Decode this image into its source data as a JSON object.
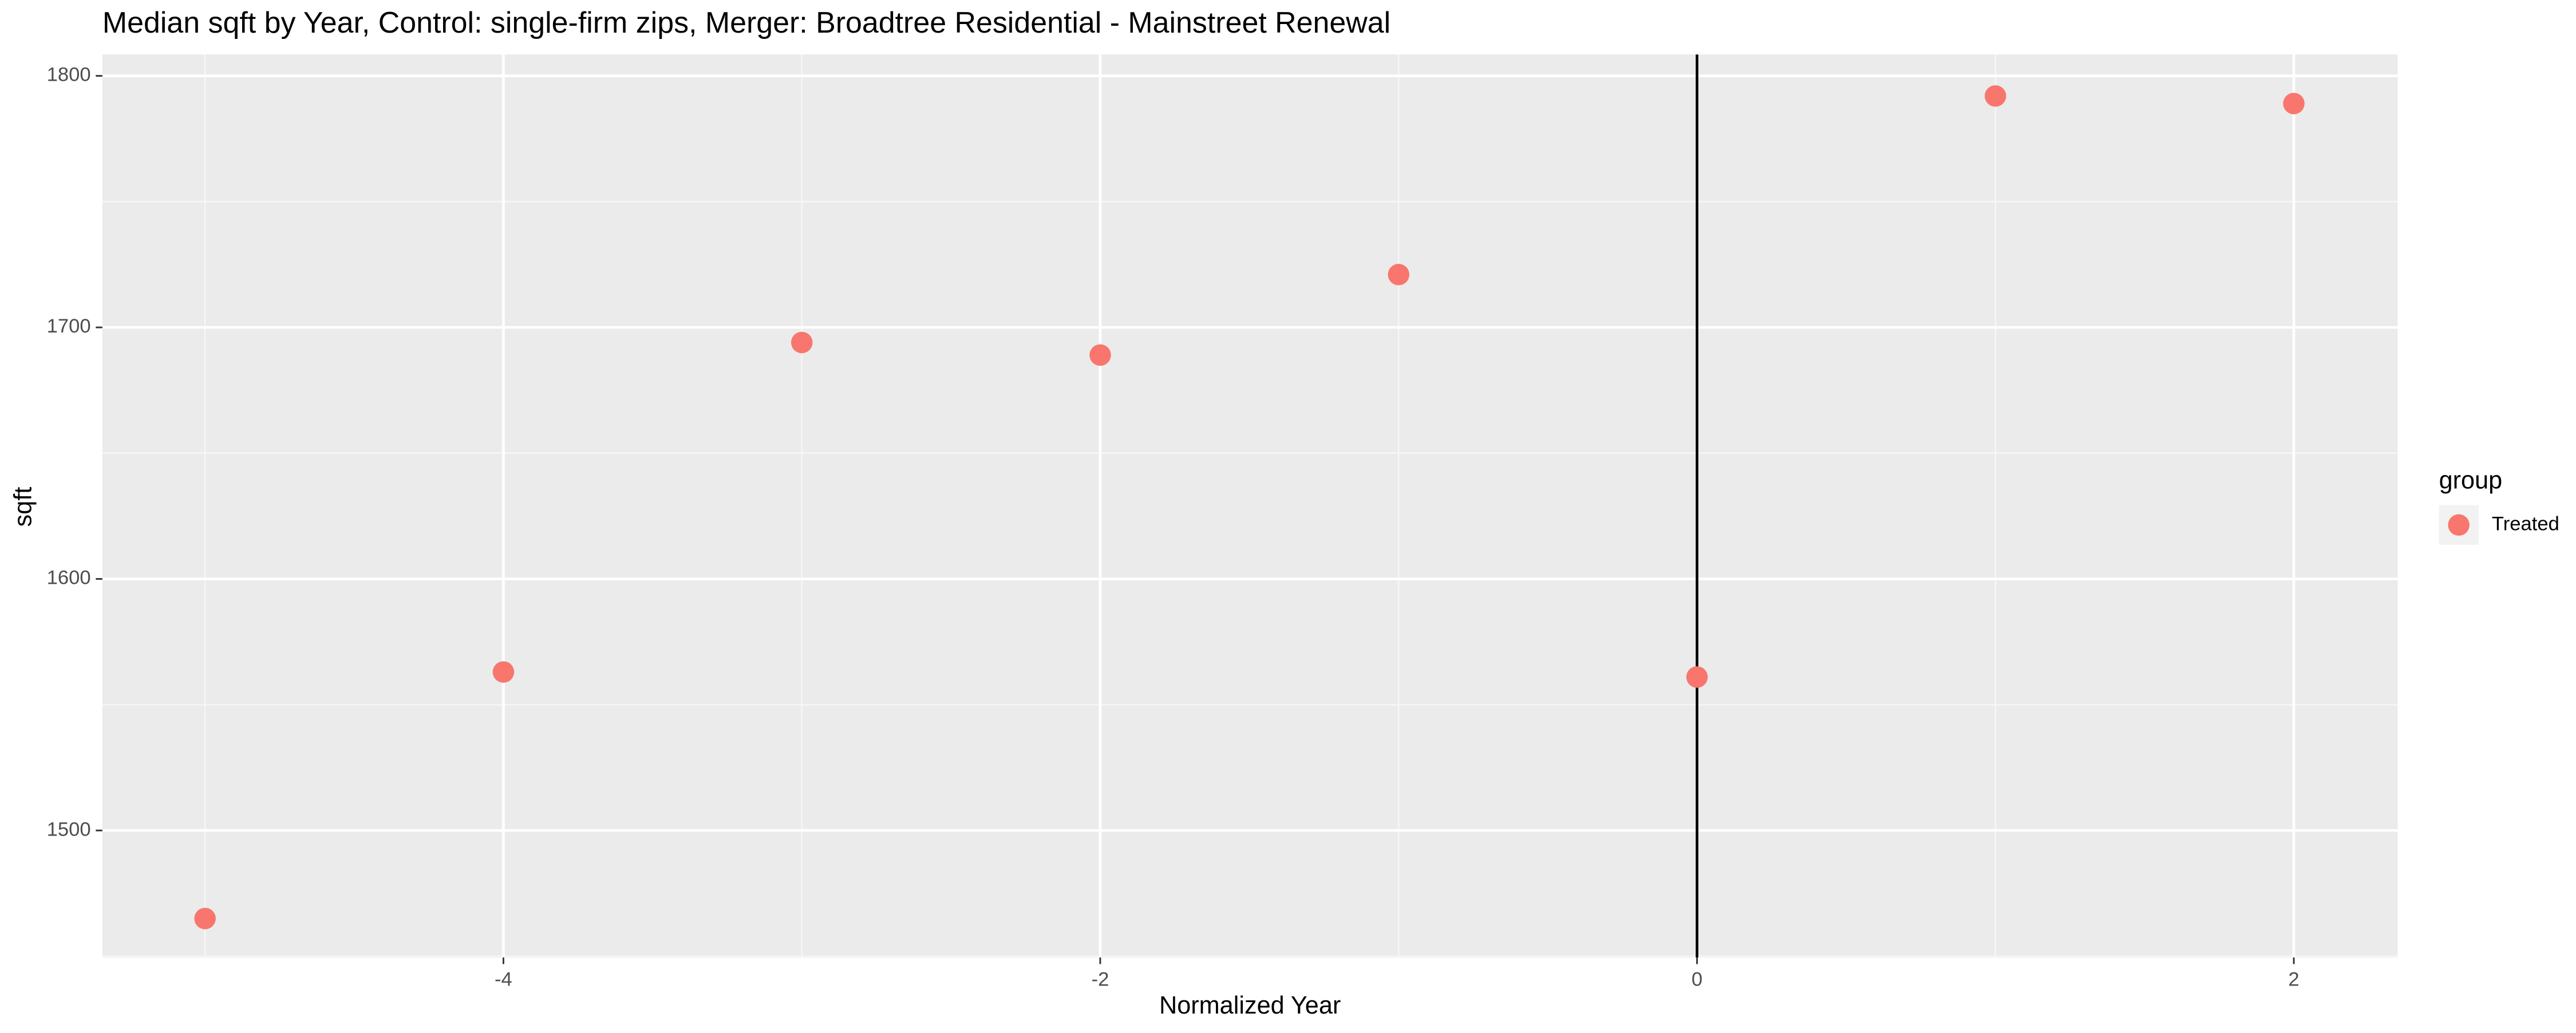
{
  "chart_data": {
    "type": "scatter",
    "title": "Median sqft by Year, Control: single-firm zips, Merger: Broadtree Residential - Mainstreet Renewal",
    "x_label": "Normalized Year",
    "y_label": "sqft",
    "legend_title": "group",
    "series": [
      {
        "name": "Treated",
        "color": "#F8766D",
        "x": [
          -5,
          -4,
          -3,
          -2,
          -1,
          0,
          1,
          2
        ],
        "values": [
          1465,
          1563,
          1694,
          1689,
          1721,
          1561,
          1792,
          1789
        ]
      }
    ],
    "xlim": [
      -5.344,
      2.348
    ],
    "xticks": [
      -4,
      -2,
      0,
      2
    ],
    "ylim": [
      1449.5,
      1808.5
    ],
    "yticks": [
      1500,
      1600,
      1700,
      1800
    ],
    "vline": 0,
    "grid": true
  }
}
